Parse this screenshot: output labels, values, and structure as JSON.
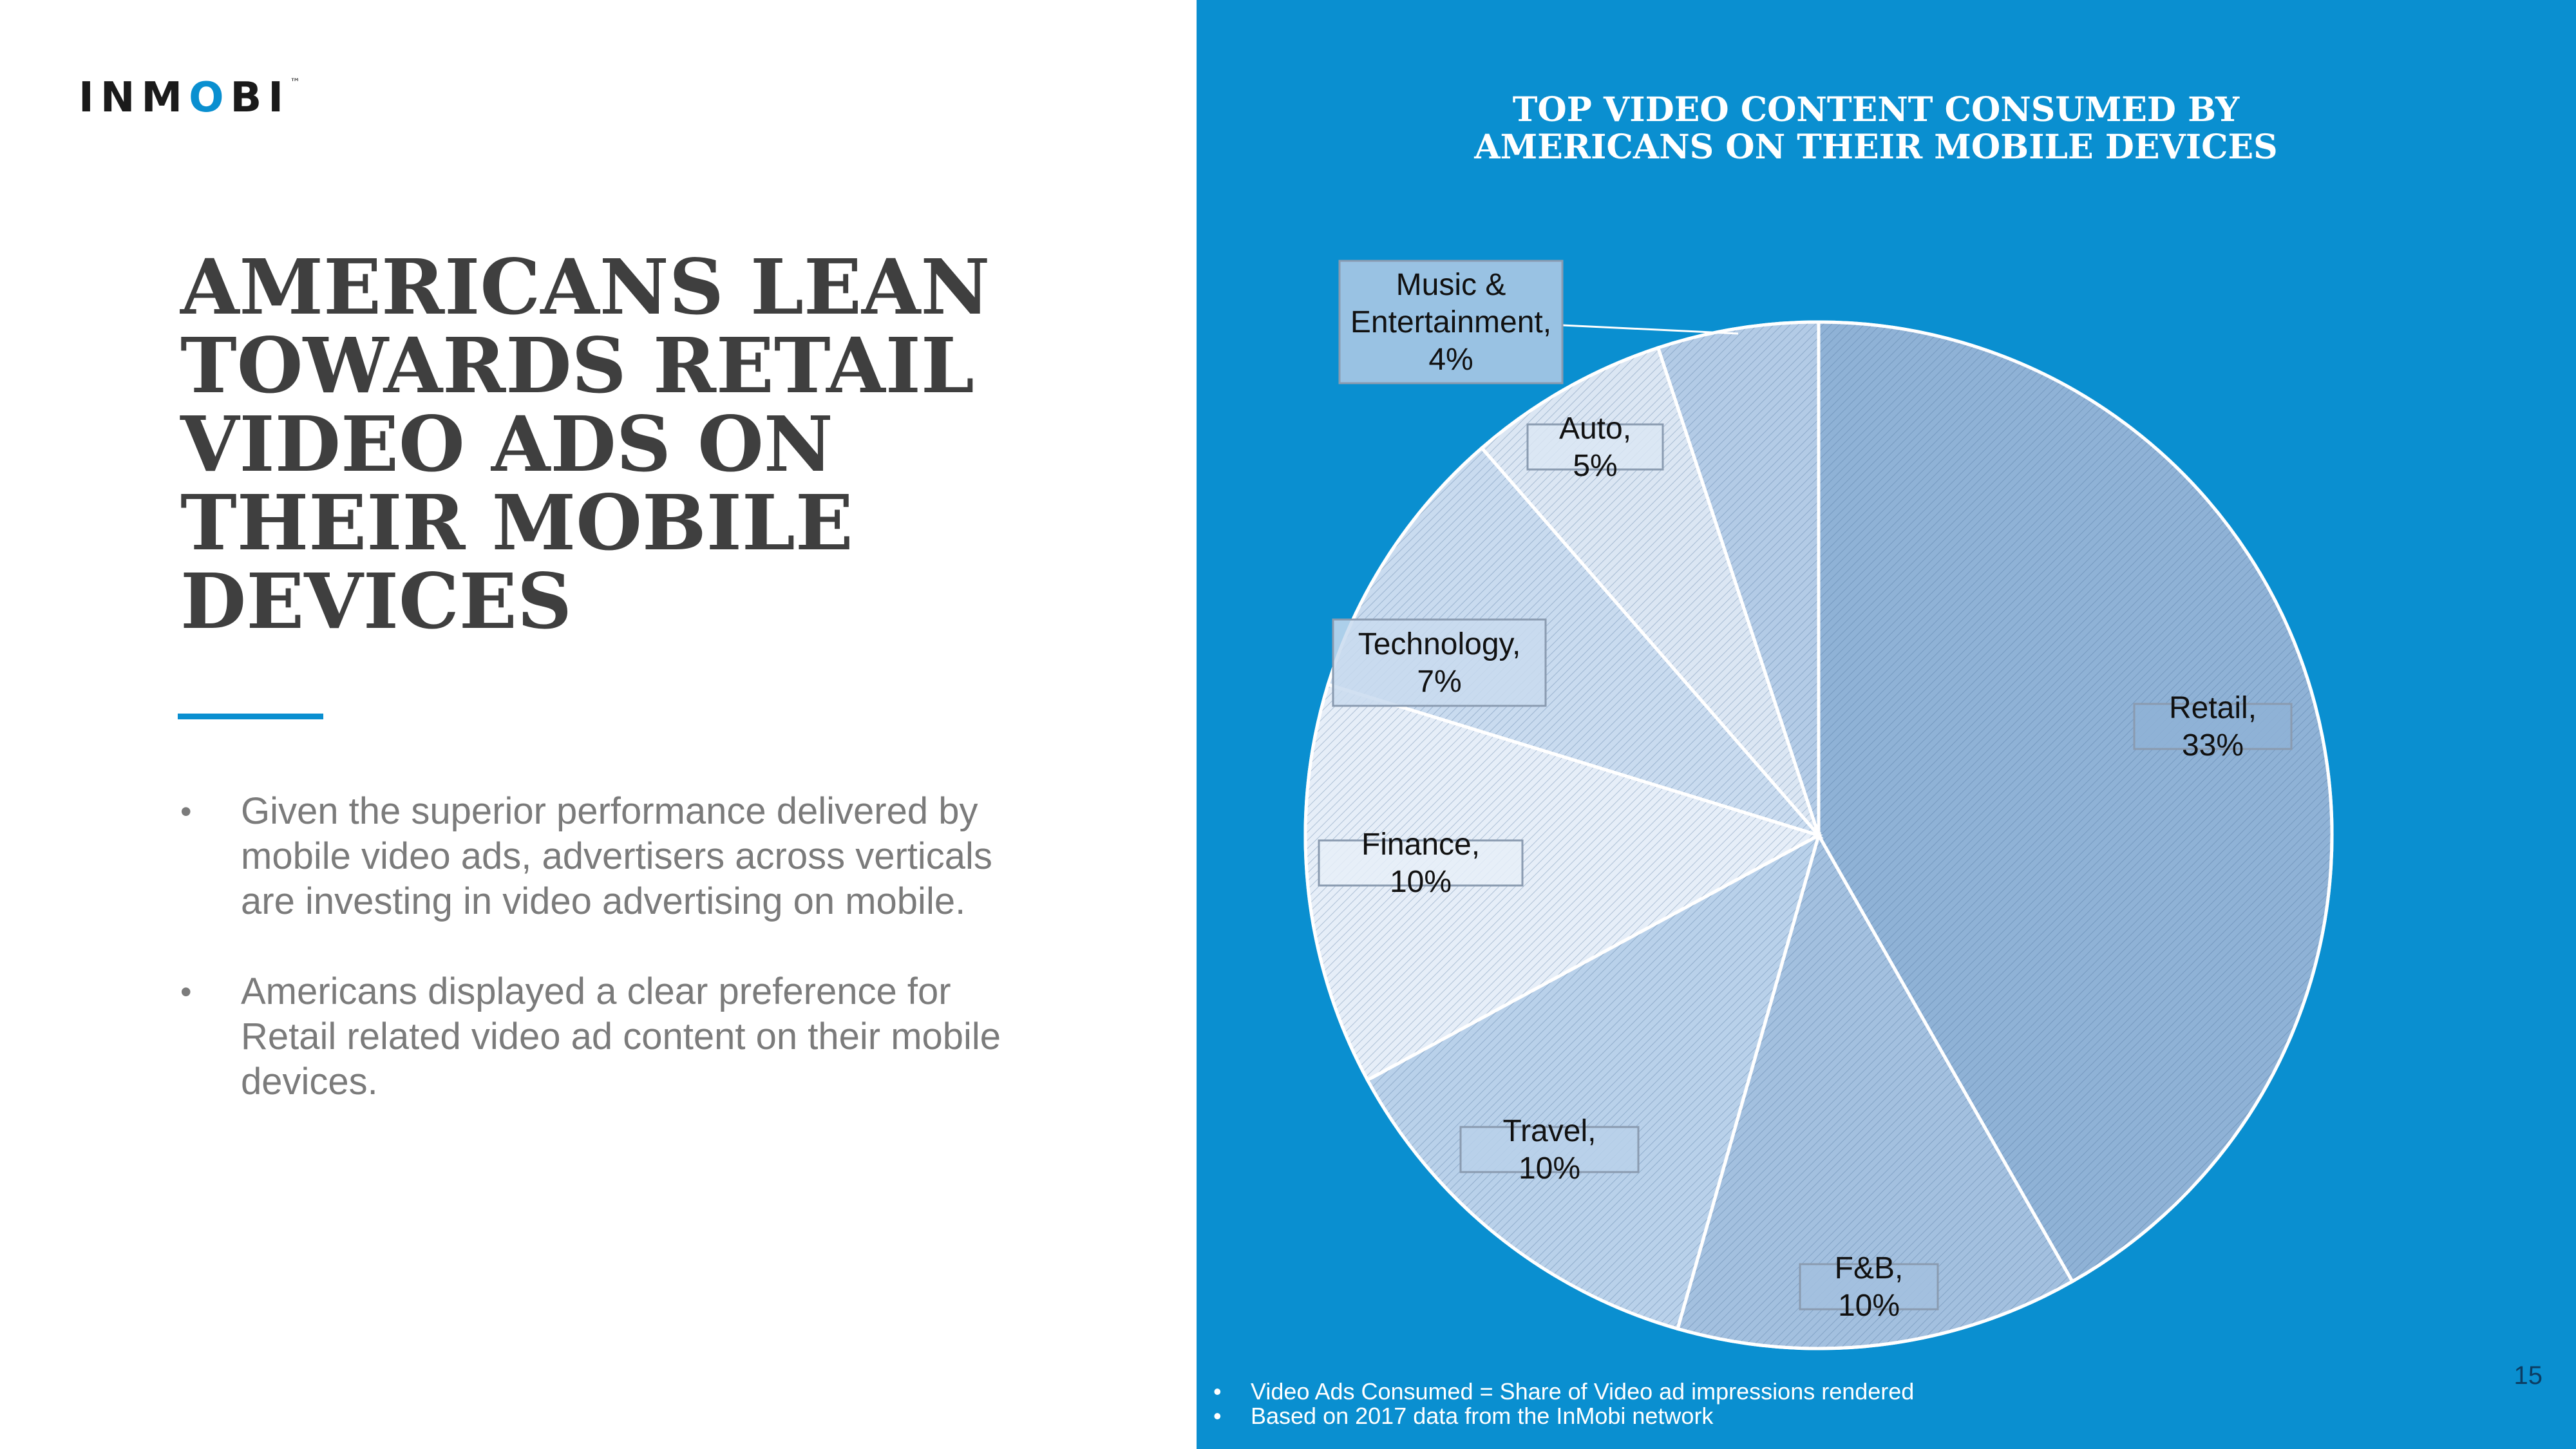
{
  "brand": {
    "logo_text_a": "INM",
    "logo_text_b": "O",
    "logo_text_c": "BI",
    "logo_tm": "™",
    "accent_color": "#0a8fd0"
  },
  "slide": {
    "headline": "AMERICANS LEAN TOWARDS RETAIL VIDEO ADS ON THEIR MOBILE DEVICES",
    "bullets": [
      "Given the superior performance delivered by mobile video ads, advertisers across verticals are investing in video advertising on mobile.",
      "Americans displayed a clear preference for Retail related video ad content on their mobile devices."
    ],
    "page_number": "15",
    "background_right": "#0a8fd0"
  },
  "chart_data": {
    "type": "pie",
    "title": "TOP VIDEO CONTENT CONSUMED BY AMERICANS ON THEIR MOBILE DEVICES",
    "legend": "none",
    "slices": [
      {
        "name": "Retail",
        "label": "Retail, 33%",
        "value": 33,
        "color": "#8fb2d6"
      },
      {
        "name": "F&B",
        "label": "F&B, 10%",
        "value": 10,
        "color": "#a3c0df"
      },
      {
        "name": "Travel",
        "label": "Travel, 10%",
        "value": 10,
        "color": "#b9d1ea"
      },
      {
        "name": "Finance",
        "label": "Finance, 10%",
        "value": 10,
        "color": "#e6eef8"
      },
      {
        "name": "Technology",
        "label": "Technology, 7%",
        "value": 7,
        "color": "#c9dbef"
      },
      {
        "name": "Auto",
        "label": "Auto, 5%",
        "value": 5,
        "color": "#dbe6f3"
      },
      {
        "name": "Music & Entertainment",
        "label": "Music & Entertainment, 4%",
        "value": 4,
        "color": "#b3cbe6"
      }
    ]
  },
  "notes": [
    "Video Ads Consumed = Share of Video ad impressions rendered",
    "Based on 2017 data from the InMobi network"
  ]
}
